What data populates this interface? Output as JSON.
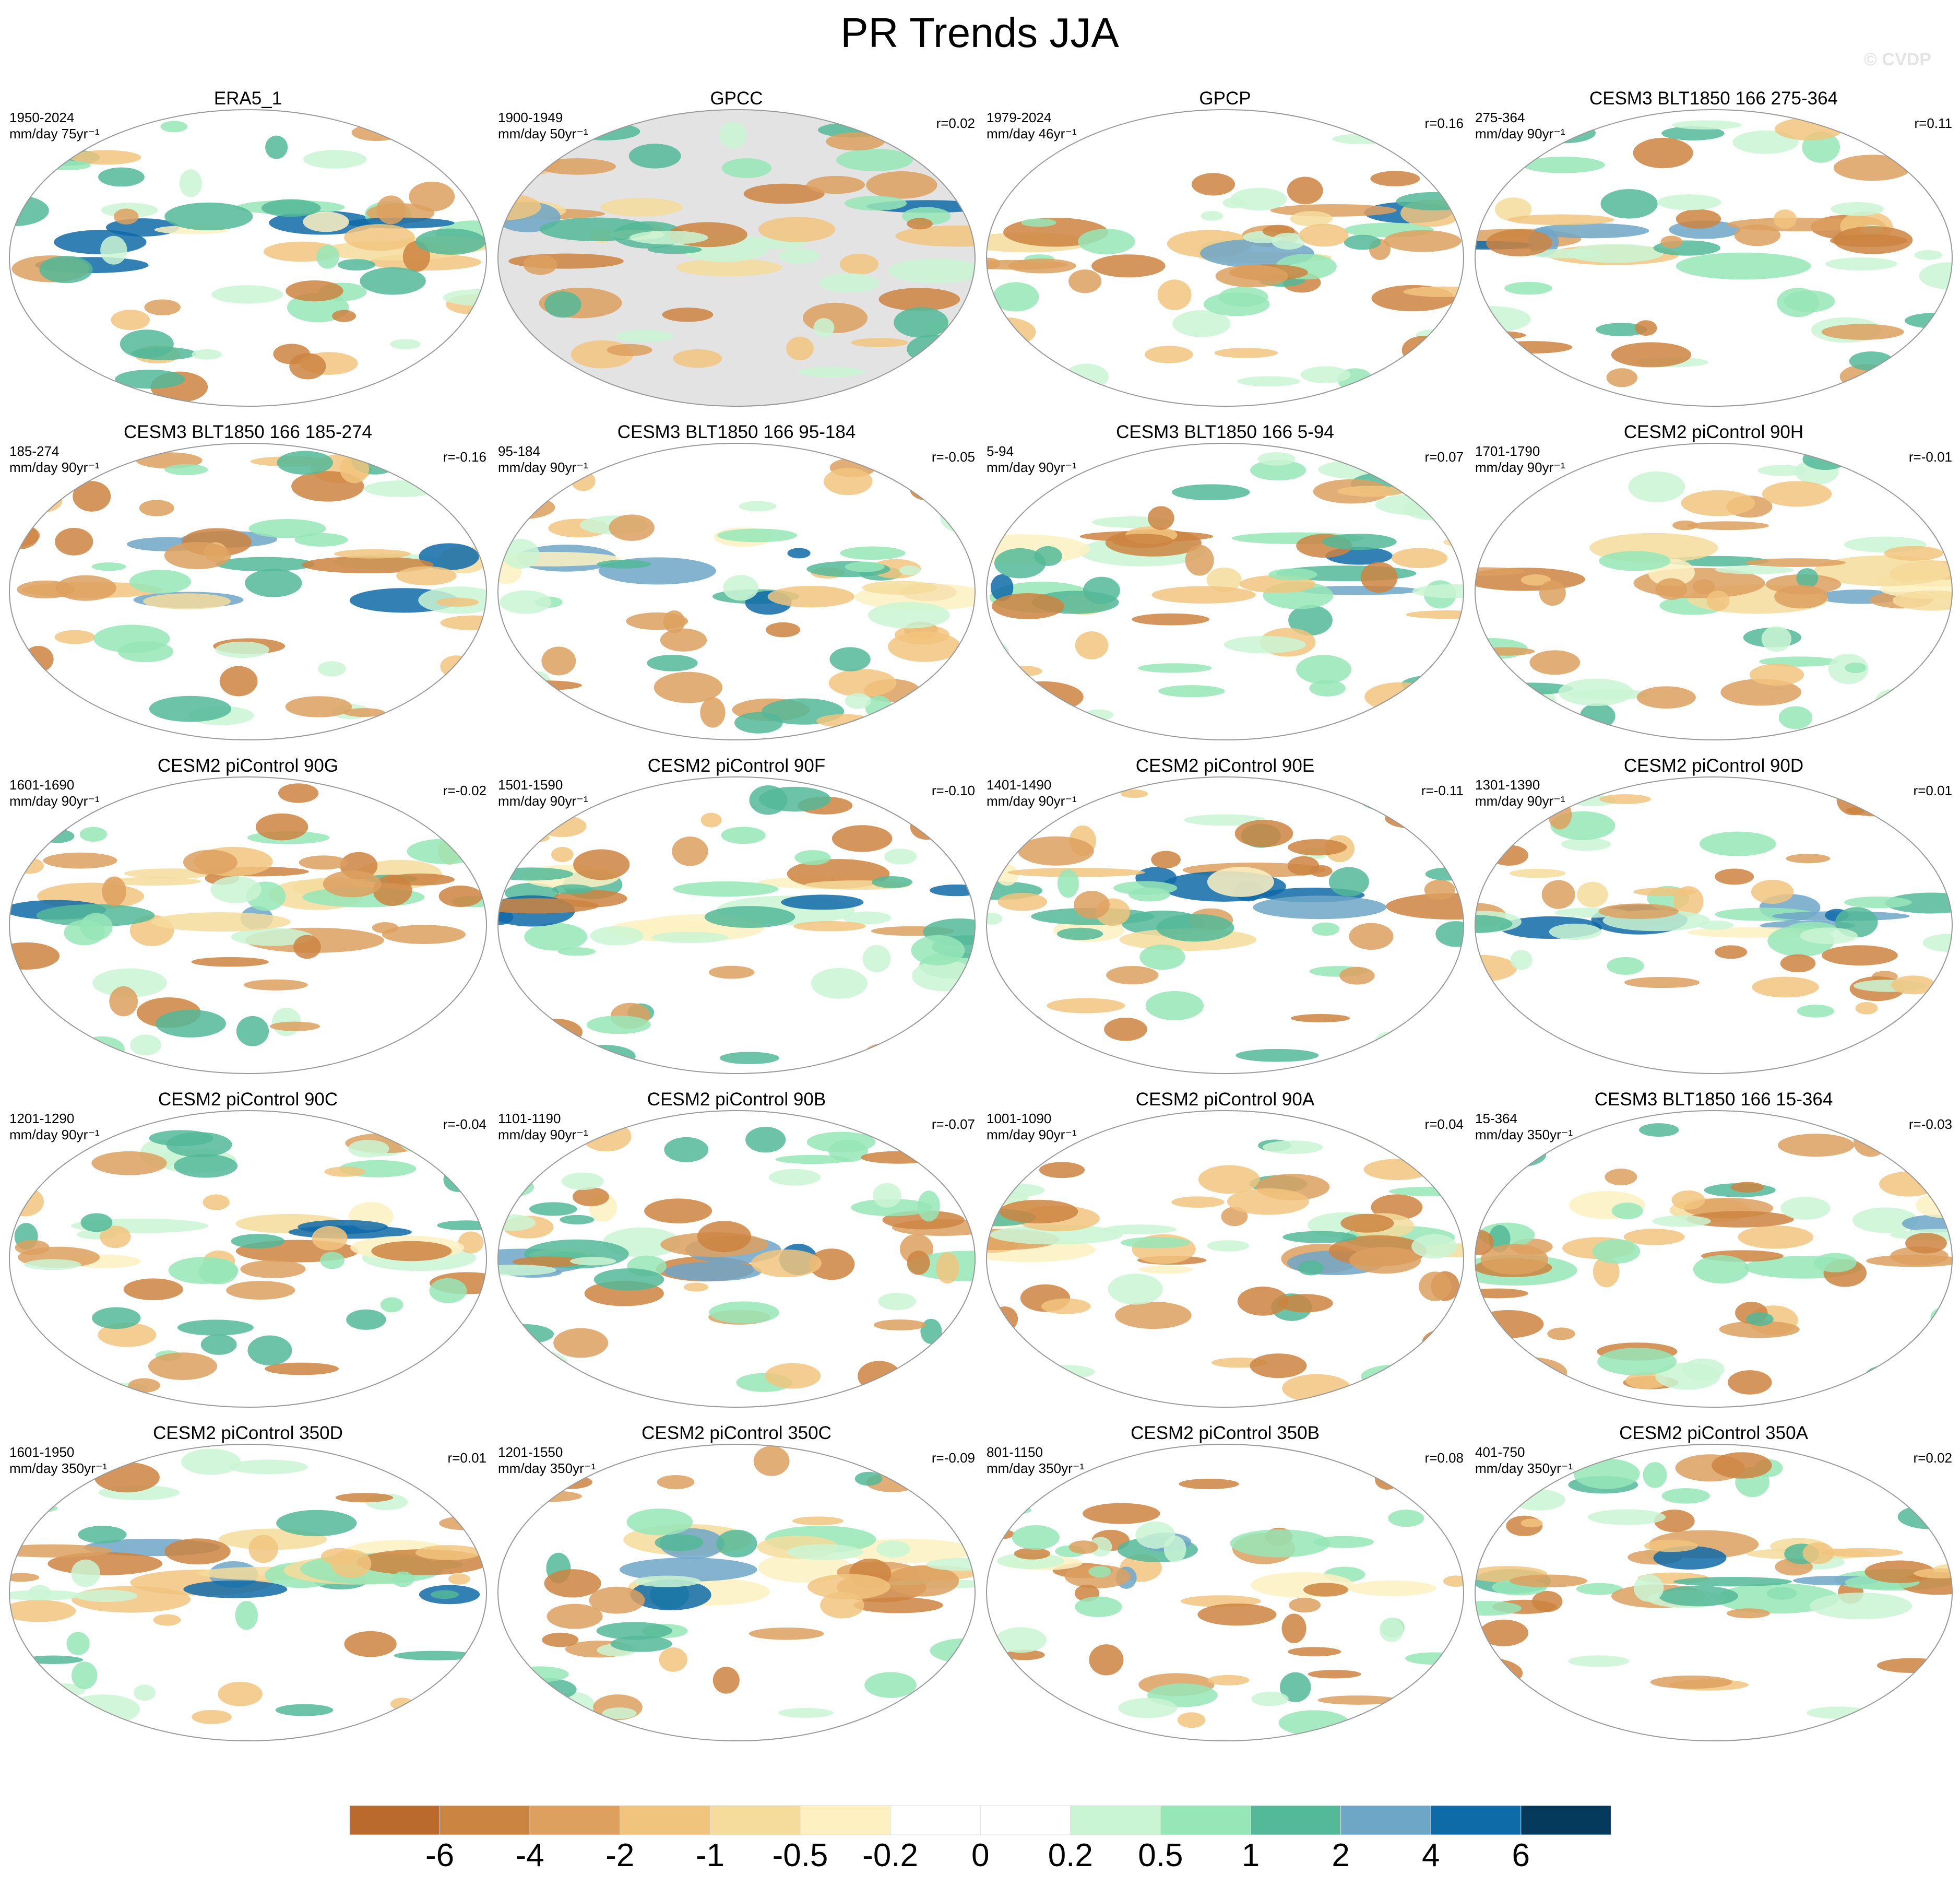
{
  "title": "PR Trends JJA",
  "watermark": "© CVDP",
  "panels": [
    {
      "title": "ERA5_1",
      "period": "1950-2024",
      "units": "mm/day 75yr⁻¹"
    },
    {
      "title": "GPCC",
      "period": "1900-1949",
      "units": "mm/day 50yr⁻¹",
      "r": "r=0.02",
      "mask_color": "#e3e3e3"
    },
    {
      "title": "GPCP",
      "period": "1979-2024",
      "units": "mm/day 46yr⁻¹",
      "r": "r=0.16"
    },
    {
      "title": "CESM3 BLT1850 166 275-364",
      "period": "275-364",
      "units": "mm/day 90yr⁻¹",
      "r": "r=0.11"
    },
    {
      "title": "CESM3 BLT1850 166 185-274",
      "period": "185-274",
      "units": "mm/day 90yr⁻¹",
      "r": "r=-0.16"
    },
    {
      "title": "CESM3 BLT1850 166 95-184",
      "period": "95-184",
      "units": "mm/day 90yr⁻¹",
      "r": "r=-0.05"
    },
    {
      "title": "CESM3 BLT1850 166 5-94",
      "period": "5-94",
      "units": "mm/day 90yr⁻¹",
      "r": "r=0.07"
    },
    {
      "title": "CESM2 piControl 90H",
      "period": "1701-1790",
      "units": "mm/day 90yr⁻¹",
      "r": "r=-0.01"
    },
    {
      "title": "CESM2 piControl 90G",
      "period": "1601-1690",
      "units": "mm/day 90yr⁻¹",
      "r": "r=-0.02"
    },
    {
      "title": "CESM2 piControl 90F",
      "period": "1501-1590",
      "units": "mm/day 90yr⁻¹",
      "r": "r=-0.10"
    },
    {
      "title": "CESM2 piControl 90E",
      "period": "1401-1490",
      "units": "mm/day 90yr⁻¹",
      "r": "r=-0.11"
    },
    {
      "title": "CESM2 piControl 90D",
      "period": "1301-1390",
      "units": "mm/day 90yr⁻¹",
      "r": "r=0.01"
    },
    {
      "title": "CESM2 piControl 90C",
      "period": "1201-1290",
      "units": "mm/day 90yr⁻¹",
      "r": "r=-0.04"
    },
    {
      "title": "CESM2 piControl 90B",
      "period": "1101-1190",
      "units": "mm/day 90yr⁻¹",
      "r": "r=-0.07"
    },
    {
      "title": "CESM2 piControl 90A",
      "period": "1001-1090",
      "units": "mm/day 90yr⁻¹",
      "r": "r=0.04"
    },
    {
      "title": "CESM3 BLT1850 166 15-364",
      "period": "15-364",
      "units": "mm/day 350yr⁻¹",
      "r": "r=-0.03"
    },
    {
      "title": "CESM2 piControl 350D",
      "period": "1601-1950",
      "units": "mm/day 350yr⁻¹",
      "r": "r=0.01"
    },
    {
      "title": "CESM2 piControl 350C",
      "period": "1201-1550",
      "units": "mm/day 350yr⁻¹",
      "r": "r=-0.09"
    },
    {
      "title": "CESM2 piControl 350B",
      "period": "801-1150",
      "units": "mm/day 350yr⁻¹",
      "r": "r=0.08"
    },
    {
      "title": "CESM2 piControl 350A",
      "period": "401-750",
      "units": "mm/day 350yr⁻¹",
      "r": "r=0.02"
    }
  ],
  "colorbar": {
    "colors": [
      "#bb6a2d",
      "#cc8441",
      "#dda05f",
      "#f1c47e",
      "#f5dc9c",
      "#fdf1c2",
      "#ffffff",
      "#ffffff",
      "#caf5d4",
      "#97e6b7",
      "#53b998",
      "#6ea6c8",
      "#0f6aa8",
      "#053a5c"
    ],
    "ticks": [
      -6,
      -4,
      -2,
      -1,
      -0.5,
      -0.2,
      0,
      0.2,
      0.5,
      1,
      2,
      4,
      6
    ]
  }
}
